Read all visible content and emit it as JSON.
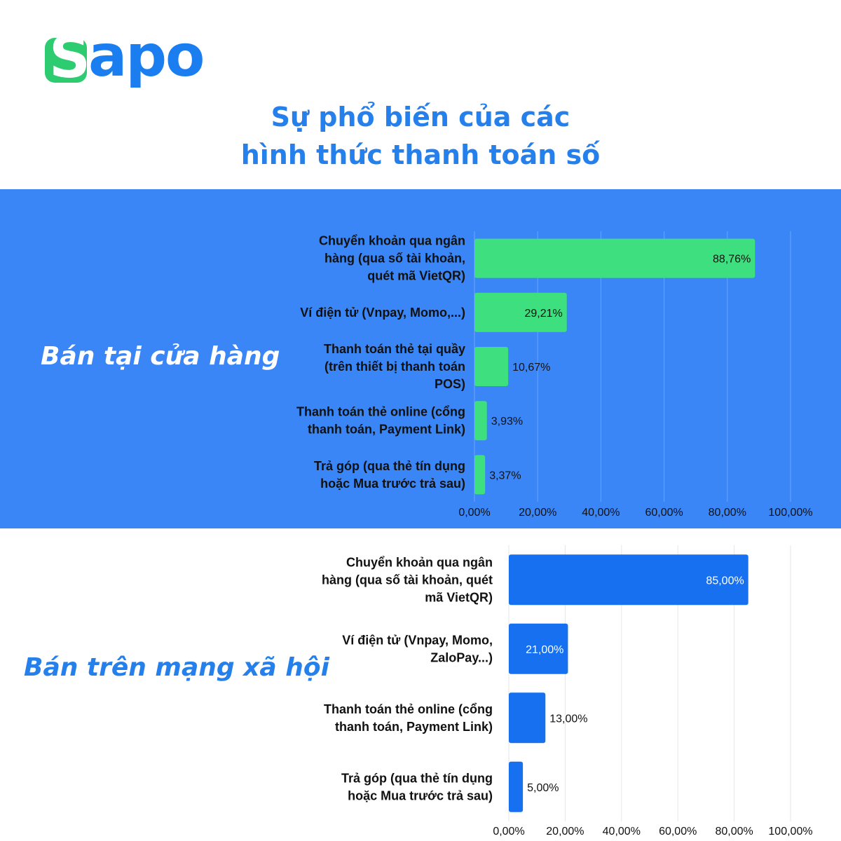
{
  "logo": {
    "first": "S",
    "rest": "apo"
  },
  "title_lines": [
    "Sự phổ biến của các",
    "hình thức thanh toán số"
  ],
  "sections": {
    "store": {
      "label": "Bán tại cửa hàng"
    },
    "social": {
      "label": "Bán trên mạng xã hội"
    }
  },
  "colors": {
    "title": "#2680eb",
    "band": "#3b86f7",
    "store_bar": "#3ddf7f",
    "social_bar": "#1670f0",
    "grid": "#e6e6e6"
  },
  "chart_data": [
    {
      "type": "bar",
      "orientation": "horizontal",
      "section": "Bán tại cửa hàng",
      "categories": [
        [
          "Chuyển khoản qua ngân",
          "hàng (qua số tài khoản,",
          "quét mã VietQR)"
        ],
        [
          "Ví điện tử (Vnpay, Momo,...)"
        ],
        [
          "Thanh toán thẻ tại quầy",
          "(trên thiết bị thanh toán",
          "POS)"
        ],
        [
          "Thanh toán thẻ online (cổng",
          "thanh toán, Payment Link)"
        ],
        [
          "Trả góp (qua thẻ tín dụng",
          "hoặc Mua trước trả sau)"
        ]
      ],
      "values": [
        88.76,
        29.21,
        10.67,
        3.93,
        3.37
      ],
      "value_labels": [
        "88,76%",
        "29,21%",
        "10,67%",
        "3,93%",
        "3,37%"
      ],
      "xlim": [
        0,
        100
      ],
      "x_ticks": [
        "0,00%",
        "20,00%",
        "40,00%",
        "60,00%",
        "80,00%",
        "100,00%"
      ],
      "grid": true
    },
    {
      "type": "bar",
      "orientation": "horizontal",
      "section": "Bán trên mạng xã hội",
      "categories": [
        [
          "Chuyển khoản qua ngân",
          "hàng (qua số tài khoản, quét",
          "mã VietQR)"
        ],
        [
          "Ví điện tử (Vnpay, Momo,",
          "ZaloPay...)"
        ],
        [
          "Thanh toán thẻ online (cổng",
          "thanh toán, Payment Link)"
        ],
        [
          "Trả góp (qua thẻ tín dụng",
          "hoặc Mua trước trả sau)"
        ]
      ],
      "values": [
        85.0,
        21.0,
        13.0,
        5.0
      ],
      "value_labels": [
        "85,00%",
        "21,00%",
        "13,00%",
        "5,00%"
      ],
      "xlim": [
        0,
        100
      ],
      "x_ticks": [
        "0,00%",
        "20,00%",
        "40,00%",
        "60,00%",
        "80,00%",
        "100,00%"
      ],
      "grid": true
    }
  ]
}
